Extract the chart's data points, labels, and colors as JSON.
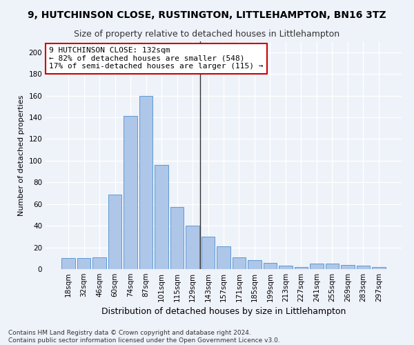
{
  "title": "9, HUTCHINSON CLOSE, RUSTINGTON, LITTLEHAMPTON, BN16 3TZ",
  "subtitle": "Size of property relative to detached houses in Littlehampton",
  "xlabel": "Distribution of detached houses by size in Littlehampton",
  "ylabel": "Number of detached properties",
  "categories": [
    "18sqm",
    "32sqm",
    "46sqm",
    "60sqm",
    "74sqm",
    "87sqm",
    "101sqm",
    "115sqm",
    "129sqm",
    "143sqm",
    "157sqm",
    "171sqm",
    "185sqm",
    "199sqm",
    "213sqm",
    "227sqm",
    "241sqm",
    "255sqm",
    "269sqm",
    "283sqm",
    "297sqm"
  ],
  "values": [
    10,
    10,
    11,
    69,
    141,
    160,
    96,
    57,
    40,
    30,
    21,
    11,
    8,
    6,
    3,
    2,
    5,
    5,
    4,
    3,
    2
  ],
  "bar_color": "#aec6e8",
  "bar_edge_color": "#5b9bd5",
  "annotation_text": "9 HUTCHINSON CLOSE: 132sqm\n← 82% of detached houses are smaller (548)\n17% of semi-detached houses are larger (115) →",
  "annotation_box_color": "#ffffff",
  "annotation_box_edge_color": "#cc0000",
  "prop_line_index": 8.5,
  "ylim": [
    0,
    210
  ],
  "yticks": [
    0,
    20,
    40,
    60,
    80,
    100,
    120,
    140,
    160,
    180,
    200
  ],
  "background_color": "#eef2f9",
  "grid_color": "#ffffff",
  "footer": "Contains HM Land Registry data © Crown copyright and database right 2024.\nContains public sector information licensed under the Open Government Licence v3.0.",
  "title_fontsize": 10,
  "subtitle_fontsize": 9,
  "xlabel_fontsize": 9,
  "ylabel_fontsize": 8,
  "tick_fontsize": 7.5,
  "footer_fontsize": 6.5,
  "annotation_fontsize": 8
}
